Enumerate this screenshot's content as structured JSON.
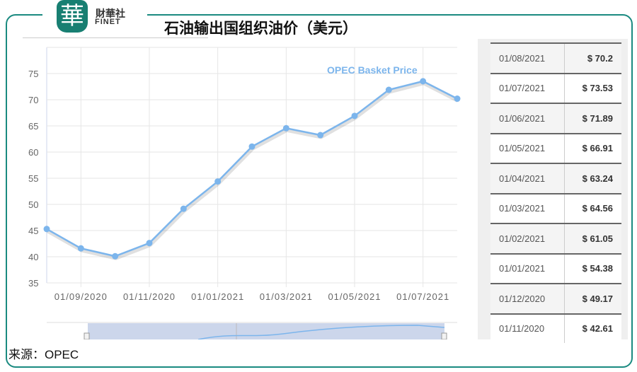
{
  "brand": {
    "logo_char": "華",
    "name_cn": "財華社",
    "name_en": "FINET"
  },
  "title": "石油输出国组织油价（美元）",
  "source": "来源：OPEC",
  "colors": {
    "frame": "#1a8a80",
    "series": "#7cb5ec",
    "navigator": "#ccd6eb"
  },
  "chart_data": {
    "type": "line",
    "series": [
      {
        "name": "OPEC Basket Price",
        "x": [
          "01/08/2020",
          "01/09/2020",
          "01/10/2020",
          "01/11/2020",
          "01/12/2020",
          "01/01/2021",
          "01/02/2021",
          "01/03/2021",
          "01/04/2021",
          "01/05/2021",
          "01/06/2021",
          "01/07/2021",
          "01/08/2021"
        ],
        "values": [
          45.3,
          41.6,
          40.1,
          42.61,
          49.17,
          54.38,
          61.05,
          64.56,
          63.24,
          66.91,
          71.89,
          73.53,
          70.2
        ]
      }
    ],
    "xticks": [
      "01/09/2020",
      "01/11/2020",
      "01/01/2021",
      "01/03/2021",
      "01/05/2021",
      "01/07/2021"
    ],
    "yticks": [
      35,
      40,
      45,
      50,
      55,
      60,
      65,
      70,
      75
    ],
    "ylim": [
      35,
      79
    ],
    "grid": true,
    "navigator": true
  },
  "table": [
    {
      "date": "01/08/2021",
      "price": "$ 70.2"
    },
    {
      "date": "01/07/2021",
      "price": "$ 73.53"
    },
    {
      "date": "01/06/2021",
      "price": "$ 71.89"
    },
    {
      "date": "01/05/2021",
      "price": "$ 66.91"
    },
    {
      "date": "01/04/2021",
      "price": "$ 63.24"
    },
    {
      "date": "01/03/2021",
      "price": "$ 64.56"
    },
    {
      "date": "01/02/2021",
      "price": "$ 61.05"
    },
    {
      "date": "01/01/2021",
      "price": "$ 54.38"
    },
    {
      "date": "01/12/2020",
      "price": "$ 49.17"
    },
    {
      "date": "01/11/2020",
      "price": "$ 42.61"
    }
  ]
}
